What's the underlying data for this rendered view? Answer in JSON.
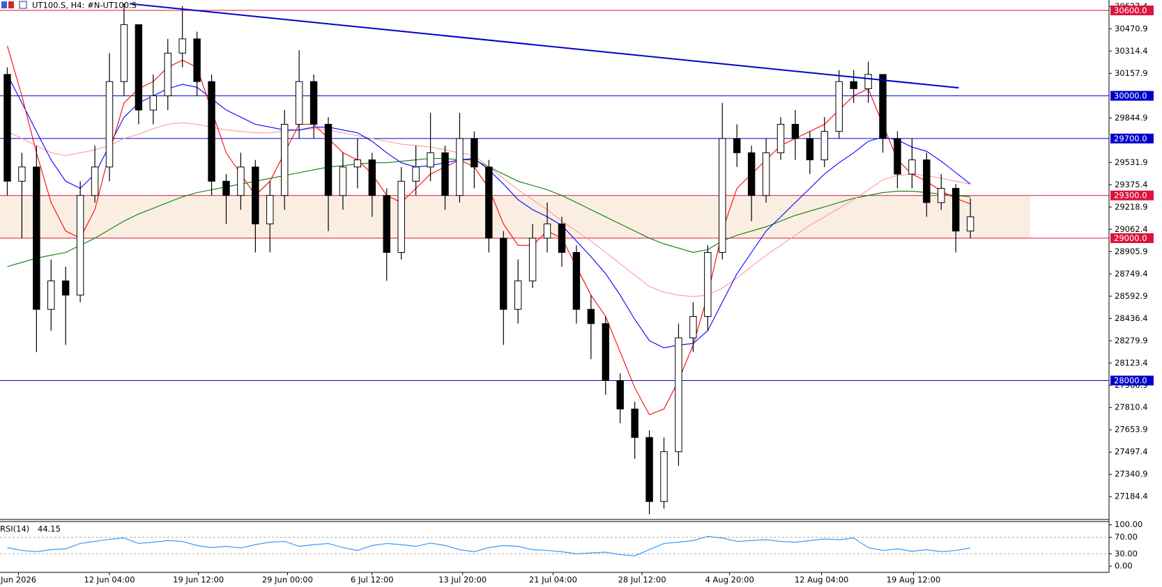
{
  "chart_data": {
    "type": "candlestick",
    "title": "UT100.S, H4:  #N-UT100.S",
    "xlim": [
      0,
      76
    ],
    "ylim": [
      27029,
      30673
    ],
    "xticks": [
      {
        "value": 1.27,
        "label": "Jun 2026"
      },
      {
        "value": 7.5,
        "label": "12 Jun 04:00"
      },
      {
        "value": 13.6,
        "label": "19 Jun 12:00"
      },
      {
        "value": 19.7,
        "label": "29 Jun 00:00"
      },
      {
        "value": 25.5,
        "label": "6 Jul 12:00"
      },
      {
        "value": 31.7,
        "label": "13 Jul 20:00"
      },
      {
        "value": 37.9,
        "label": "21 Jul 04:00"
      },
      {
        "value": 44.0,
        "label": "28 Jul 12:00"
      },
      {
        "value": 50.0,
        "label": "4 Aug 20:00"
      },
      {
        "value": 56.3,
        "label": "12 Aug 04:00"
      },
      {
        "value": 62.6,
        "label": "19 Aug 12:00"
      }
    ],
    "yticks": [
      30627.4,
      30470.9,
      30314.4,
      30157.9,
      29844.9,
      29531.9,
      29375.4,
      29218.9,
      29062.4,
      28905.9,
      28749.4,
      28592.9,
      28436.4,
      28279.9,
      28123.4,
      27966.9,
      27810.4,
      27653.9,
      27497.4,
      27340.9,
      27184.4
    ],
    "open": [
      30150,
      29400,
      29500,
      28500,
      28700,
      28600,
      29300,
      29500,
      30100,
      30500,
      29900,
      30000,
      30300,
      30400,
      30100,
      29400,
      29300,
      29500,
      29100,
      29300,
      29800,
      30100,
      29800,
      29300,
      29500,
      29550,
      29300,
      28900,
      29400,
      29500,
      29600,
      29300,
      29700,
      29500,
      29000,
      28500,
      28700,
      29000,
      29100,
      28900,
      28500,
      28400,
      28000,
      27800,
      27600,
      27150,
      27500,
      28300,
      28450,
      28900,
      29700,
      29600,
      29300,
      29600,
      29800,
      29700,
      29550,
      29750,
      30100,
      30050,
      30150,
      29700,
      29450,
      29550,
      29250,
      29350,
      29050
    ],
    "high": [
      30200,
      29600,
      29650,
      28850,
      28800,
      29400,
      29650,
      30300,
      30650,
      30500,
      30150,
      30400,
      30630,
      30450,
      30150,
      29450,
      29600,
      29550,
      29400,
      29900,
      30320,
      30150,
      29850,
      29600,
      29700,
      29600,
      29350,
      29500,
      29650,
      29880,
      29650,
      29880,
      29750,
      29550,
      29050,
      28850,
      29100,
      29250,
      29150,
      28950,
      28600,
      28450,
      28050,
      27850,
      27650,
      27600,
      28400,
      28550,
      28950,
      29950,
      29800,
      29650,
      29700,
      29850,
      29900,
      29750,
      29850,
      30180,
      30180,
      30240,
      30150,
      29750,
      29700,
      29600,
      29450,
      29380,
      29280
    ],
    "low": [
      29300,
      29000,
      28200,
      28350,
      28250,
      28550,
      29250,
      29400,
      30000,
      29800,
      29800,
      29900,
      30200,
      30000,
      29300,
      29100,
      29200,
      28900,
      28900,
      29200,
      29700,
      29700,
      29050,
      29200,
      29350,
      29150,
      28700,
      28850,
      29300,
      29400,
      29200,
      29250,
      29350,
      28900,
      28250,
      28400,
      28650,
      28900,
      28800,
      28400,
      28150,
      27900,
      27700,
      27450,
      27060,
      27100,
      27400,
      28200,
      28350,
      28850,
      29500,
      29120,
      29250,
      29550,
      29550,
      29450,
      29500,
      29700,
      29950,
      29950,
      29600,
      29350,
      29350,
      29150,
      29200,
      28900,
      29000
    ],
    "close": [
      29400,
      29500,
      28500,
      28700,
      28600,
      29300,
      29500,
      30100,
      30500,
      29900,
      30000,
      30300,
      30400,
      30100,
      29400,
      29300,
      29500,
      29100,
      29300,
      29800,
      30100,
      29800,
      29300,
      29500,
      29550,
      29300,
      28900,
      29400,
      29500,
      29600,
      29300,
      29700,
      29500,
      29000,
      28500,
      28700,
      29000,
      29100,
      28900,
      28500,
      28400,
      28000,
      27800,
      27600,
      27150,
      27500,
      28300,
      28450,
      28900,
      29700,
      29600,
      29300,
      29600,
      29800,
      29700,
      29550,
      29750,
      30100,
      30050,
      30150,
      29700,
      29450,
      29550,
      29250,
      29350,
      29050,
      29150
    ],
    "overlays": [
      {
        "color": "#008000",
        "values": [
          28800,
          28830,
          28860,
          28880,
          28900,
          28950,
          29000,
          29060,
          29120,
          29170,
          29210,
          29250,
          29290,
          29320,
          29340,
          29360,
          29380,
          29400,
          29420,
          29440,
          29460,
          29480,
          29500,
          29510,
          29520,
          29530,
          29530,
          29540,
          29550,
          29560,
          29560,
          29550,
          29550,
          29500,
          29450,
          29400,
          29370,
          29340,
          29300,
          29250,
          29200,
          29150,
          29100,
          29050,
          29000,
          28960,
          28930,
          28900,
          28920,
          28980,
          29020,
          29050,
          29080,
          29120,
          29160,
          29190,
          29220,
          29250,
          29280,
          29300,
          29320,
          29330,
          29330,
          29320,
          29310,
          29300,
          29290
        ]
      },
      {
        "color": "#ff9a9a",
        "values": [
          29750,
          29700,
          29650,
          29600,
          29580,
          29600,
          29620,
          29650,
          29700,
          29730,
          29770,
          29800,
          29810,
          29800,
          29780,
          29760,
          29750,
          29740,
          29740,
          29750,
          29760,
          29770,
          29760,
          29740,
          29720,
          29700,
          29680,
          29660,
          29650,
          29640,
          29620,
          29600,
          29580,
          29500,
          29420,
          29340,
          29270,
          29200,
          29120,
          29050,
          28980,
          28900,
          28820,
          28740,
          28660,
          28620,
          28600,
          28590,
          28600,
          28650,
          28720,
          28800,
          28880,
          28950,
          29020,
          29090,
          29150,
          29210,
          29270,
          29340,
          29410,
          29440,
          29450,
          29440,
          29420,
          29400,
          29380
        ]
      },
      {
        "color": "#0000ff",
        "values": [
          30150,
          29950,
          29750,
          29550,
          29400,
          29350,
          29450,
          29650,
          29850,
          29950,
          30000,
          30050,
          30080,
          30060,
          29980,
          29900,
          29850,
          29800,
          29780,
          29760,
          29760,
          29780,
          29780,
          29760,
          29740,
          29680,
          29600,
          29530,
          29500,
          29510,
          29530,
          29550,
          29560,
          29480,
          29380,
          29270,
          29200,
          29150,
          29090,
          28980,
          28870,
          28750,
          28600,
          28430,
          28280,
          28230,
          28250,
          28260,
          28350,
          28550,
          28750,
          28900,
          29050,
          29150,
          29250,
          29350,
          29450,
          29530,
          29600,
          29680,
          29710,
          29690,
          29640,
          29610,
          29540,
          29460,
          29380
        ]
      },
      {
        "color": "#ff0000",
        "values": [
          30350,
          30000,
          29600,
          29250,
          29050,
          29000,
          29200,
          29600,
          29950,
          30050,
          30100,
          30200,
          30250,
          30200,
          29900,
          29600,
          29450,
          29300,
          29400,
          29600,
          29800,
          29800,
          29700,
          29600,
          29550,
          29450,
          29300,
          29250,
          29350,
          29450,
          29500,
          29550,
          29500,
          29350,
          29100,
          28950,
          28950,
          29050,
          29000,
          28800,
          28600,
          28450,
          28200,
          27950,
          27760,
          27800,
          28000,
          28250,
          28600,
          29050,
          29350,
          29450,
          29550,
          29650,
          29700,
          29750,
          29800,
          29900,
          30000,
          30050,
          29800,
          29550,
          29450,
          29400,
          29330,
          29280,
          29240
        ]
      }
    ],
    "trendline": {
      "color": "#0000cd",
      "x": [
        8.88,
        65.7
      ],
      "y": [
        30647,
        30056
      ]
    },
    "zone": {
      "color": "#faeee2",
      "from": 29000,
      "to": 29300,
      "end_x": 70.6
    },
    "levels": [
      {
        "value": 30600,
        "label": "30600.0",
        "color": "#dc143c"
      },
      {
        "value": 30000,
        "label": "30000.0",
        "color": "#0000cd"
      },
      {
        "value": 29700,
        "label": "29700.0",
        "color": "#0000cd"
      },
      {
        "value": 29300,
        "label": "29300.0",
        "color": "#dc143c"
      },
      {
        "value": 29000,
        "label": "29000.0",
        "color": "#dc143c"
      },
      {
        "value": 28000,
        "label": "28000.0",
        "color": "#0000cd"
      }
    ],
    "rsi": {
      "label": "RSI(14)",
      "color": "#1e90ff",
      "ylim": [
        -15,
        108
      ],
      "yticks": [
        {
          "value": 100,
          "label": "100.00"
        },
        {
          "value": 70,
          "label": "70.00"
        },
        {
          "value": 30,
          "label": "30.00"
        },
        {
          "value": 0,
          "label": "0.00"
        }
      ],
      "values": [
        45,
        38,
        35,
        40,
        42,
        55,
        60,
        65,
        68,
        55,
        58,
        62,
        60,
        50,
        45,
        48,
        44,
        52,
        58,
        60,
        48,
        52,
        55,
        45,
        38,
        50,
        55,
        52,
        48,
        56,
        50,
        40,
        35,
        45,
        50,
        48,
        40,
        38,
        35,
        30,
        32,
        34,
        28,
        25,
        40,
        55,
        58,
        62,
        72,
        68,
        60,
        62,
        64,
        60,
        58,
        62,
        66,
        64,
        68,
        45,
        38,
        42,
        36,
        40,
        35,
        38,
        44.15
      ]
    }
  }
}
